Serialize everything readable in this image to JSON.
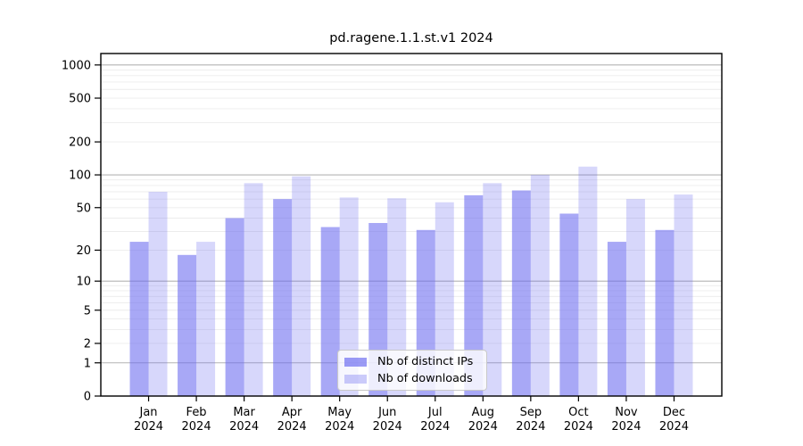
{
  "chart_data": {
    "type": "bar",
    "title": "pd.ragene.1.1.st.v1 2024",
    "y_scale": "log1p",
    "ylim": [
      0,
      1270
    ],
    "y_ticks": [
      0,
      1,
      2,
      5,
      10,
      20,
      50,
      100,
      200,
      500,
      1000
    ],
    "x_months": [
      "Jan",
      "Feb",
      "Mar",
      "Apr",
      "May",
      "Jun",
      "Jul",
      "Aug",
      "Sep",
      "Oct",
      "Nov",
      "Dec"
    ],
    "x_year": "2024",
    "grid": true,
    "legend_position": "lower center",
    "series": [
      {
        "name": "Nb of distinct IPs",
        "color": "#6666f0",
        "opacity": 0.57,
        "values": [
          24,
          18,
          40,
          60,
          33,
          36,
          31,
          65,
          72,
          44,
          24,
          31
        ]
      },
      {
        "name": "Nb of downloads",
        "color": "#6666f0",
        "opacity": 0.26,
        "values": [
          70,
          24,
          84,
          97,
          62,
          61,
          56,
          84,
          100,
          119,
          60,
          66
        ]
      }
    ]
  },
  "colors": {
    "grid_major": "#b4b4b4",
    "grid_minor": "#ececec",
    "axis": "#000000",
    "background": "#ffffff"
  }
}
